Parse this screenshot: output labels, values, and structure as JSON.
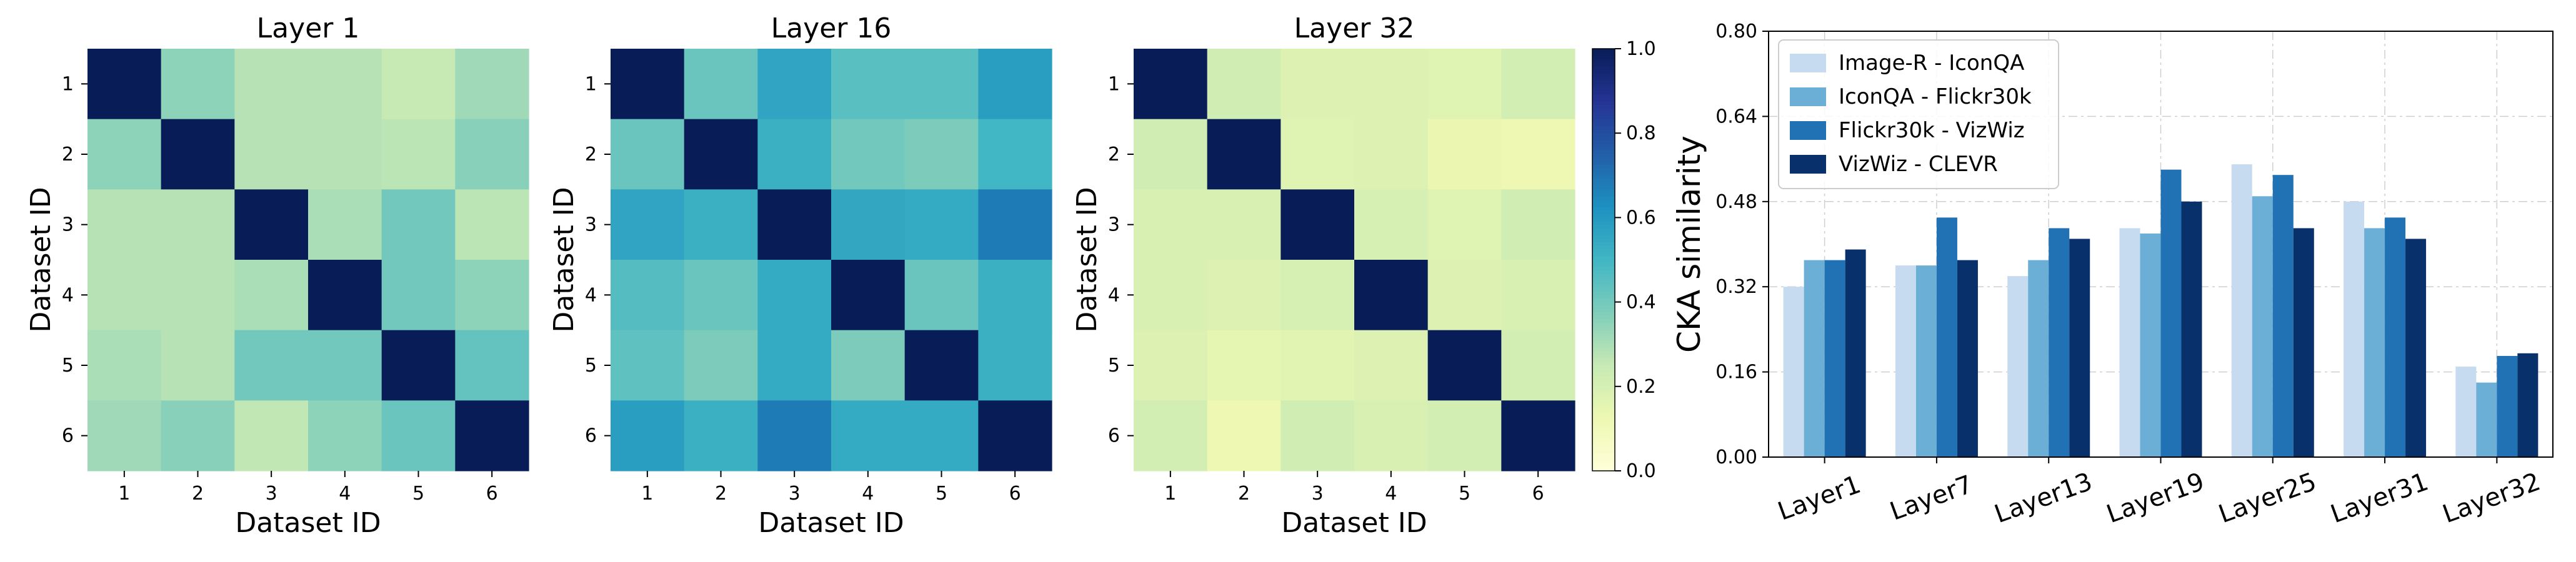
{
  "chart_data": [
    {
      "type": "heatmap",
      "title": "Layer 1",
      "xlabel": "Dataset ID",
      "ylabel": "Dataset ID",
      "x_categories": [
        "1",
        "2",
        "3",
        "4",
        "5",
        "6"
      ],
      "y_categories": [
        "1",
        "2",
        "3",
        "4",
        "5",
        "6"
      ],
      "values": [
        [
          1.0,
          0.35,
          0.28,
          0.28,
          0.25,
          0.32
        ],
        [
          0.35,
          1.0,
          0.28,
          0.28,
          0.27,
          0.36
        ],
        [
          0.28,
          0.28,
          1.0,
          0.3,
          0.4,
          0.27
        ],
        [
          0.28,
          0.28,
          0.3,
          1.0,
          0.4,
          0.35
        ],
        [
          0.3,
          0.28,
          0.4,
          0.4,
          1.0,
          0.43
        ],
        [
          0.32,
          0.36,
          0.26,
          0.35,
          0.42,
          1.0
        ]
      ],
      "vmin": 0.0,
      "vmax": 1.0,
      "colormap": "YlGnBu"
    },
    {
      "type": "heatmap",
      "title": "Layer 16",
      "xlabel": "Dataset ID",
      "ylabel": "Dataset ID",
      "x_categories": [
        "1",
        "2",
        "3",
        "4",
        "5",
        "6"
      ],
      "y_categories": [
        "1",
        "2",
        "3",
        "4",
        "5",
        "6"
      ],
      "values": [
        [
          1.0,
          0.42,
          0.56,
          0.45,
          0.45,
          0.58
        ],
        [
          0.42,
          1.0,
          0.52,
          0.4,
          0.38,
          0.5
        ],
        [
          0.56,
          0.52,
          1.0,
          0.55,
          0.54,
          0.68
        ],
        [
          0.46,
          0.42,
          0.54,
          1.0,
          0.42,
          0.52
        ],
        [
          0.44,
          0.38,
          0.54,
          0.38,
          1.0,
          0.52
        ],
        [
          0.58,
          0.52,
          0.68,
          0.54,
          0.54,
          1.0
        ]
      ],
      "vmin": 0.0,
      "vmax": 1.0,
      "colormap": "YlGnBu"
    },
    {
      "type": "heatmap",
      "title": "Layer 32",
      "xlabel": "Dataset ID",
      "ylabel": "Dataset ID",
      "x_categories": [
        "1",
        "2",
        "3",
        "4",
        "5",
        "6"
      ],
      "y_categories": [
        "1",
        "2",
        "3",
        "4",
        "5",
        "6"
      ],
      "values": [
        [
          1.0,
          0.22,
          0.18,
          0.18,
          0.17,
          0.21
        ],
        [
          0.22,
          1.0,
          0.17,
          0.18,
          0.13,
          0.12
        ],
        [
          0.19,
          0.19,
          1.0,
          0.2,
          0.17,
          0.22
        ],
        [
          0.19,
          0.18,
          0.2,
          1.0,
          0.18,
          0.19
        ],
        [
          0.18,
          0.15,
          0.16,
          0.18,
          1.0,
          0.21
        ],
        [
          0.21,
          0.12,
          0.22,
          0.19,
          0.21,
          1.0
        ]
      ],
      "vmin": 0.0,
      "vmax": 1.0,
      "colormap": "YlGnBu"
    },
    {
      "type": "bar",
      "xlabel": "",
      "ylabel": "CKA similarity",
      "categories": [
        "Layer1",
        "Layer7",
        "Layer13",
        "Layer19",
        "Layer25",
        "Layer31",
        "Layer32"
      ],
      "series": [
        {
          "name": "Image-R - IconQA",
          "color": "#c6dbef",
          "values": [
            0.32,
            0.36,
            0.34,
            0.43,
            0.55,
            0.48,
            0.17
          ]
        },
        {
          "name": "IconQA - Flickr30k",
          "color": "#6baed6",
          "values": [
            0.37,
            0.36,
            0.37,
            0.42,
            0.49,
            0.43,
            0.14
          ]
        },
        {
          "name": "Flickr30k - VizWiz",
          "color": "#2171b5",
          "values": [
            0.37,
            0.45,
            0.43,
            0.54,
            0.53,
            0.45,
            0.19
          ]
        },
        {
          "name": "VizWiz - CLEVR",
          "color": "#08306b",
          "values": [
            0.39,
            0.37,
            0.41,
            0.48,
            0.43,
            0.41,
            0.195
          ]
        }
      ],
      "ylim": [
        0.0,
        0.8
      ],
      "yticks": [
        "0.00",
        "0.16",
        "0.32",
        "0.48",
        "0.64",
        "0.80"
      ],
      "grid": true,
      "legend_position": "top-left"
    }
  ],
  "colorbar": {
    "ticks": [
      "0.0",
      "0.2",
      "0.4",
      "0.6",
      "0.8",
      "1.0"
    ],
    "range": [
      0.0,
      1.0
    ]
  }
}
